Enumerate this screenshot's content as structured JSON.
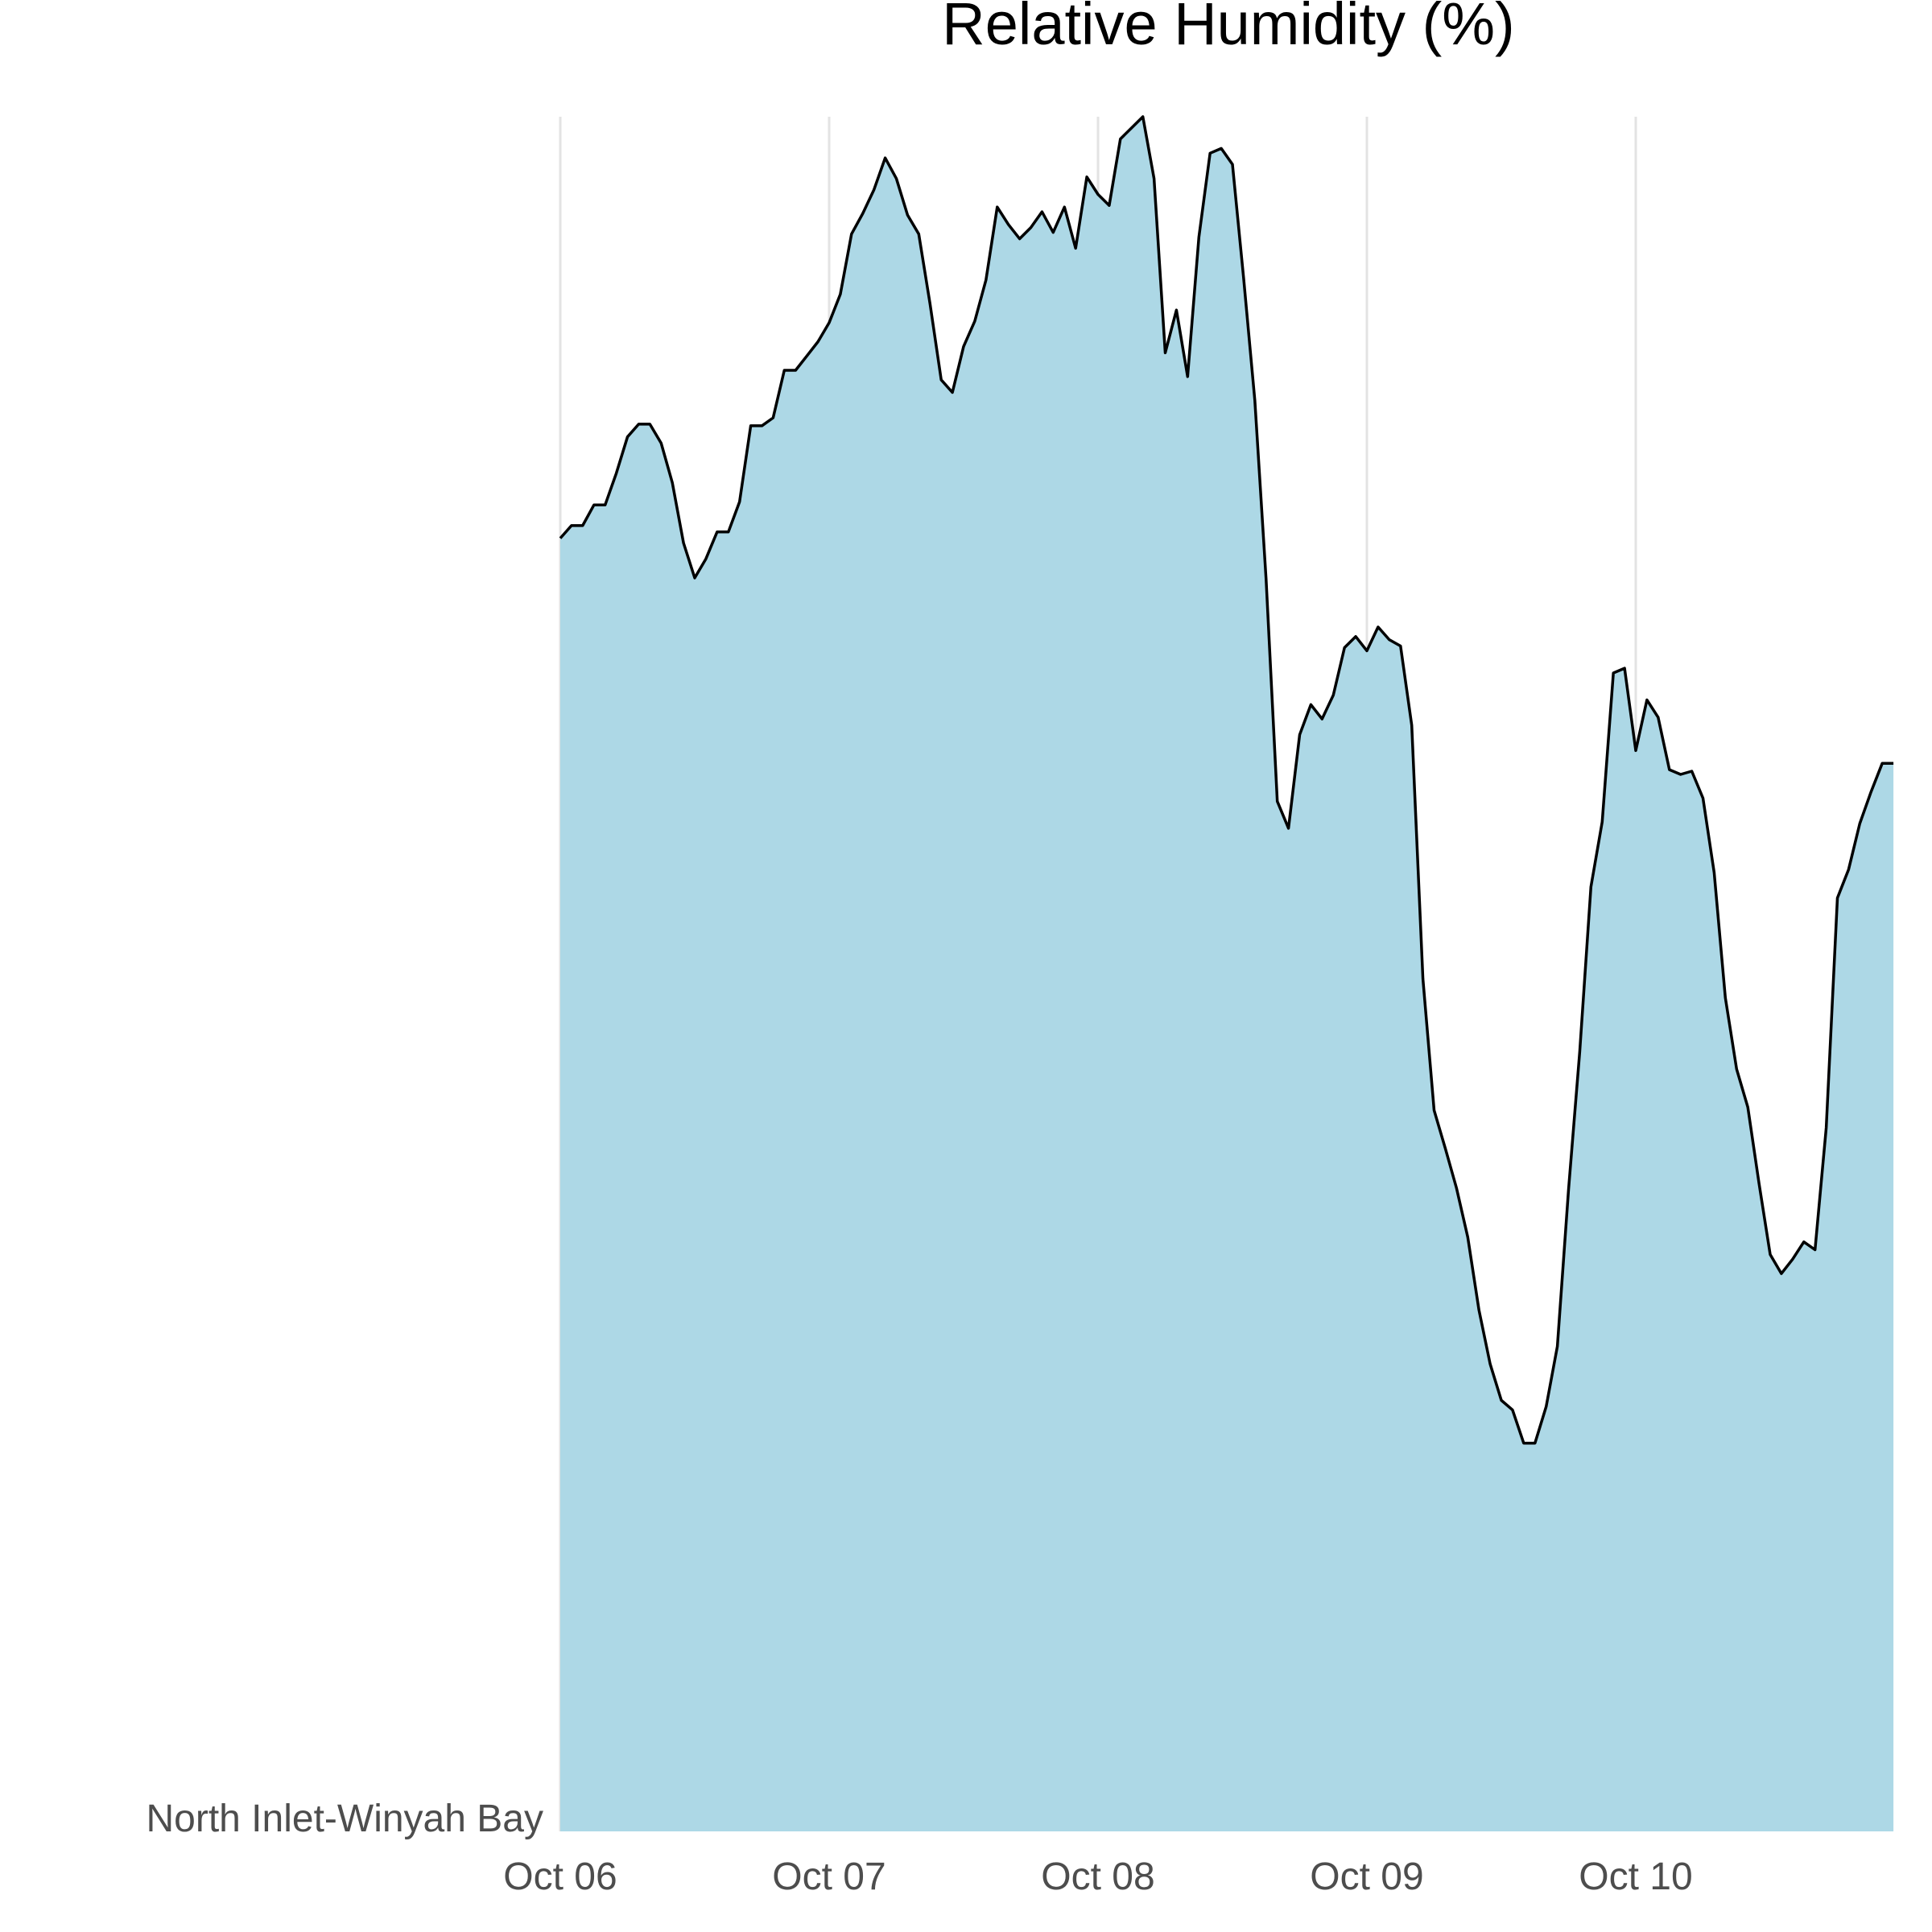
{
  "chart_data": {
    "type": "area",
    "title": "Relative Humidity (%)",
    "xlabel": "",
    "ylabel": "",
    "category_label": "North Inlet-Winyah Bay",
    "x_ticks": [
      "Oct 06",
      "Oct 07",
      "Oct 08",
      "Oct 09",
      "Oct 10"
    ],
    "x_range": [
      "Oct 06 00:00",
      "Oct 10 23:00"
    ],
    "interval": "1 hour",
    "grid": "vertical major gridlines only",
    "y_axis_labels": "none",
    "colors": {
      "area_fill": "#add8e6",
      "line": "#000000",
      "grid": "#e3e3e3",
      "tick_text": "#4d4d4d"
    },
    "series": [
      {
        "values": [
          81.6,
          82.4,
          82.4,
          83.7,
          83.7,
          85.7,
          88.0,
          88.8,
          88.8,
          87.6,
          85.1,
          81.3,
          79.1,
          80.3,
          82.0,
          82.0,
          83.9,
          88.7,
          88.7,
          89.2,
          92.2,
          92.2,
          93.1,
          94.0,
          95.2,
          97.0,
          100.8,
          102.1,
          103.6,
          105.6,
          104.3,
          102.0,
          100.8,
          96.4,
          91.6,
          90.8,
          93.7,
          95.3,
          97.9,
          102.5,
          101.4,
          100.5,
          101.2,
          102.2,
          100.9,
          102.5,
          99.9,
          104.4,
          103.3,
          102.6,
          106.8,
          107.5,
          108.2,
          104.3,
          93.3,
          96.0,
          91.8,
          100.6,
          105.9,
          106.2,
          105.2,
          98.0,
          90.3,
          79.0,
          65.0,
          63.3,
          69.2,
          71.1,
          70.2,
          71.7,
          74.7,
          75.4,
          74.5,
          76.0,
          75.2,
          74.8,
          69.8,
          53.8,
          45.5,
          43.1,
          40.6,
          37.5,
          32.9,
          29.5,
          27.2,
          26.6,
          24.5,
          24.5,
          26.8,
          30.6,
          40.5,
          49.2,
          59.6,
          63.7,
          73.1,
          73.4,
          68.2,
          71.4,
          70.3,
          67.0,
          66.7,
          66.9,
          65.2,
          60.5,
          52.6,
          48.1,
          45.7,
          40.9,
          36.4,
          35.2,
          36.1,
          37.2,
          36.7,
          44.4,
          58.9,
          60.7,
          63.6,
          65.6,
          67.4,
          67.4
        ]
      }
    ]
  }
}
